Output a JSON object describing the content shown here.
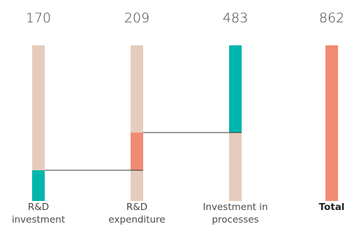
{
  "chart_data": {
    "type": "waterfall",
    "categories": [
      {
        "label_lines": [
          "R&D",
          "investment"
        ],
        "bold": false
      },
      {
        "label_lines": [
          "R&D",
          "expenditure"
        ],
        "bold": false
      },
      {
        "label_lines": [
          "Investment in",
          "processes"
        ],
        "bold": false
      },
      {
        "label_lines": [
          "Total"
        ],
        "bold": true
      }
    ],
    "value_labels": [
      "170",
      "209",
      "483",
      "862"
    ],
    "steps": [
      {
        "start": 0,
        "end": 170
      },
      {
        "start": 170,
        "end": 379
      },
      {
        "start": 379,
        "end": 862
      },
      {
        "start": 0,
        "end": 862
      }
    ],
    "ylim": [
      0,
      862
    ],
    "grid": false,
    "legend": "none"
  },
  "colors": {
    "track": "#e6ccbc",
    "teal": "#00b5ad",
    "salmon": "#f08a73",
    "connector": "#333333"
  }
}
